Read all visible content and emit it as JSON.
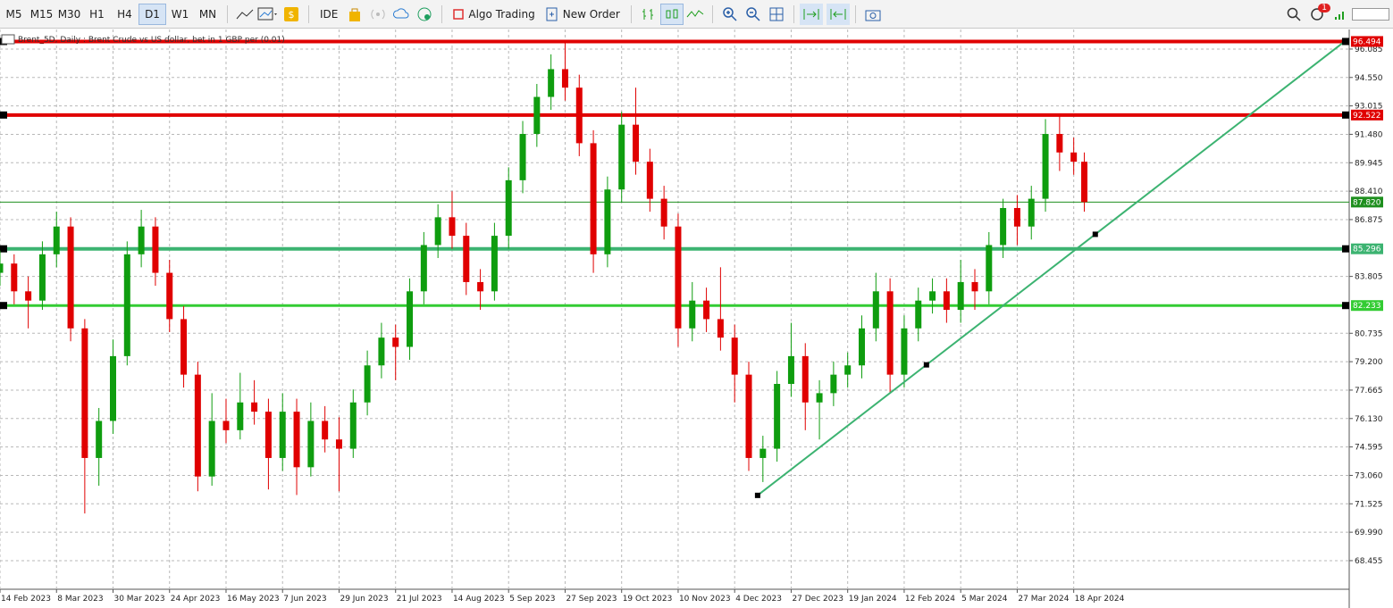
{
  "toolbar": {
    "timeframes": [
      "M5",
      "M15",
      "M30",
      "H1",
      "H4",
      "D1",
      "W1",
      "MN"
    ],
    "active_timeframe": 5,
    "ide": "IDE",
    "algo_trading": "Algo Trading",
    "new_order": "New Order",
    "notifications": "1"
  },
  "chart_data": {
    "type": "candlestick",
    "title": "Brent_5D, Daily : Brent Crude vs US dollar, bet in 1 GBP per (0.01)",
    "x": [
      0,
      4,
      8,
      12,
      16,
      20,
      24,
      28,
      32,
      36,
      40,
      44,
      48,
      52,
      56,
      60,
      64,
      68,
      72,
      76,
      80,
      84,
      88,
      92,
      96,
      100,
      104,
      108,
      112,
      116,
      120,
      124,
      128,
      132,
      136,
      140,
      144,
      148,
      152,
      156,
      160,
      164,
      168,
      172,
      176,
      180,
      184,
      188,
      192,
      196,
      200,
      204,
      208,
      212,
      216,
      220,
      224,
      228,
      232,
      236,
      240,
      244,
      248,
      252,
      256,
      260,
      264,
      268,
      272,
      276,
      280,
      284,
      288,
      292,
      296,
      300,
      304,
      307
    ],
    "open": [
      84.0,
      84.5,
      83.0,
      82.5,
      85.0,
      86.5,
      81.0,
      74.0,
      76.0,
      79.5,
      85.0,
      86.5,
      84.0,
      81.5,
      78.5,
      73.0,
      76.0,
      75.5,
      77.0,
      76.5,
      74.0,
      76.5,
      73.5,
      76.0,
      75.0,
      74.5,
      77.0,
      79.0,
      80.5,
      80.0,
      83.0,
      85.5,
      87.0,
      86.0,
      83.5,
      83.0,
      86.0,
      89.0,
      91.5,
      93.5,
      95.0,
      94.0,
      91.0,
      85.0,
      88.5,
      92.0,
      90.0,
      88.0,
      86.5,
      81.0,
      82.5,
      81.5,
      80.5,
      78.5,
      74.0,
      74.5,
      78.0,
      79.5,
      77.0,
      77.5,
      78.5,
      79.0,
      81.0,
      83.0,
      78.5,
      81.0,
      82.5,
      83.0,
      82.0,
      83.5,
      83.0,
      85.5,
      87.5,
      86.5,
      88.0,
      91.5,
      90.5,
      90.0
    ],
    "high": [
      85.2,
      85.0,
      83.8,
      85.7,
      87.3,
      87.0,
      81.5,
      76.7,
      80.4,
      85.7,
      87.4,
      87.0,
      84.7,
      82.2,
      79.2,
      77.5,
      77.2,
      78.6,
      78.2,
      77.2,
      77.5,
      77.2,
      77.0,
      76.8,
      76.2,
      77.7,
      79.8,
      81.3,
      81.2,
      83.7,
      86.2,
      87.7,
      88.4,
      86.7,
      84.2,
      86.7,
      89.7,
      92.2,
      94.2,
      95.8,
      96.5,
      94.7,
      91.7,
      89.2,
      92.7,
      94.0,
      90.7,
      88.7,
      87.2,
      83.5,
      83.2,
      84.3,
      81.2,
      79.2,
      75.2,
      78.7,
      81.3,
      80.2,
      78.2,
      79.2,
      79.7,
      81.7,
      84.0,
      83.7,
      81.7,
      83.2,
      83.7,
      83.7,
      84.7,
      84.2,
      86.2,
      88.0,
      88.2,
      88.7,
      92.3,
      92.5,
      91.3,
      90.5
    ],
    "low": [
      83.3,
      82.3,
      81.0,
      82.0,
      84.3,
      80.3,
      71.0,
      72.5,
      75.3,
      79.0,
      84.3,
      83.3,
      80.8,
      77.8,
      72.2,
      72.5,
      74.8,
      75.0,
      75.8,
      72.3,
      73.3,
      72.0,
      73.0,
      74.3,
      72.2,
      74.0,
      76.3,
      78.3,
      78.2,
      79.3,
      82.3,
      84.8,
      85.3,
      82.8,
      82.0,
      82.5,
      85.3,
      88.3,
      90.8,
      92.8,
      93.3,
      90.3,
      84.0,
      84.3,
      87.8,
      89.3,
      87.3,
      85.8,
      80.0,
      80.3,
      80.8,
      79.8,
      77.0,
      73.3,
      72.7,
      73.8,
      77.3,
      75.5,
      75.0,
      76.8,
      77.8,
      78.3,
      80.3,
      77.5,
      77.8,
      80.3,
      81.8,
      81.3,
      81.3,
      82.0,
      82.3,
      84.8,
      85.5,
      85.8,
      87.3,
      89.5,
      89.3,
      87.3
    ],
    "close": [
      84.5,
      83.0,
      82.5,
      85.0,
      86.5,
      81.0,
      74.0,
      76.0,
      79.5,
      85.0,
      86.5,
      84.0,
      81.5,
      78.5,
      73.0,
      76.0,
      75.5,
      77.0,
      76.5,
      74.0,
      76.5,
      73.5,
      76.0,
      75.0,
      74.5,
      77.0,
      79.0,
      80.5,
      80.0,
      83.0,
      85.5,
      87.0,
      86.0,
      83.5,
      83.0,
      86.0,
      89.0,
      91.5,
      93.5,
      95.0,
      94.0,
      91.0,
      85.0,
      88.5,
      92.0,
      90.0,
      88.0,
      86.5,
      81.0,
      82.5,
      81.5,
      80.5,
      78.5,
      74.0,
      74.5,
      78.0,
      79.5,
      77.0,
      77.5,
      78.5,
      79.0,
      81.0,
      83.0,
      78.5,
      81.0,
      82.5,
      83.0,
      82.0,
      83.5,
      83.0,
      85.5,
      87.5,
      86.5,
      88.0,
      91.5,
      90.5,
      90.0,
      87.82
    ],
    "up_color": "#0f9d0f",
    "down_color": "#e00000",
    "xlim": [
      0,
      382
    ],
    "xticks": [
      {
        "value": 0,
        "label": "14 Feb 2023"
      },
      {
        "value": 16,
        "label": "8 Mar 2023"
      },
      {
        "value": 32,
        "label": "30 Mar 2023"
      },
      {
        "value": 48,
        "label": "24 Apr 2023"
      },
      {
        "value": 64,
        "label": "16 May 2023"
      },
      {
        "value": 80,
        "label": "7 Jun 2023"
      },
      {
        "value": 96,
        "label": "29 Jun 2023"
      },
      {
        "value": 112,
        "label": "21 Jul 2023"
      },
      {
        "value": 128,
        "label": "14 Aug 2023"
      },
      {
        "value": 144,
        "label": "5 Sep 2023"
      },
      {
        "value": 160,
        "label": "27 Sep 2023"
      },
      {
        "value": 176,
        "label": "19 Oct 2023"
      },
      {
        "value": 192,
        "label": "10 Nov 2023"
      },
      {
        "value": 208,
        "label": "4 Dec 2023"
      },
      {
        "value": 224,
        "label": "27 Dec 2023"
      },
      {
        "value": 240,
        "label": "19 Jan 2024"
      },
      {
        "value": 256,
        "label": "12 Feb 2024"
      },
      {
        "value": 272,
        "label": "5 Mar 2024"
      },
      {
        "value": 288,
        "label": "27 Mar 2024"
      },
      {
        "value": 304,
        "label": "18 Apr 2024"
      }
    ],
    "ylim": [
      66.91,
      96.95
    ],
    "yticks": [
      96.085,
      {
        "value": 94.55,
        "label": "94.550"
      },
      93.015,
      {
        "value": 91.48,
        "label": "91.480"
      },
      89.945,
      {
        "value": 88.41,
        "label": "88.410"
      },
      86.875,
      83.805,
      80.735,
      {
        "value": 79.2,
        "label": "79.200"
      },
      77.665,
      {
        "value": 76.13,
        "label": "76.130"
      },
      74.595,
      {
        "value": 73.06,
        "label": "73.060"
      },
      71.525,
      {
        "value": 69.99,
        "label": "69.990"
      },
      68.455
    ],
    "grid": true,
    "levels": [
      {
        "value": 96.494,
        "color": "#e00000",
        "width": 4
      },
      {
        "value": 92.522,
        "color": "#e00000",
        "width": 4
      },
      {
        "value": 87.82,
        "label": "87.820",
        "color": "#1e8f1e",
        "width": 1
      },
      {
        "value": 85.296,
        "color": "#3cb371",
        "width": 4
      },
      {
        "value": 82.233,
        "color": "#33cc33",
        "width": 3
      }
    ],
    "trendline": {
      "color": "#3cb371",
      "x": [
        214.5,
        262.3,
        310.1,
        380.7
      ],
      "y": [
        71.98,
        79.03,
        86.08,
        96.494
      ]
    }
  }
}
